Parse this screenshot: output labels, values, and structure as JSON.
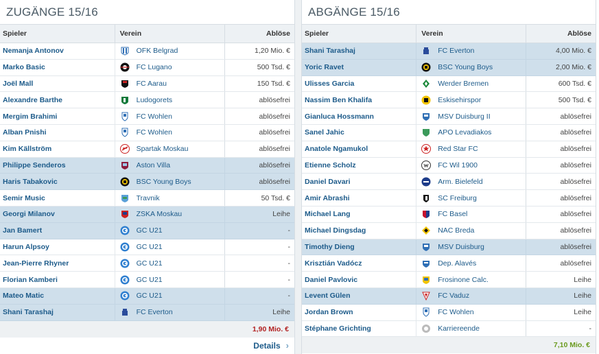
{
  "colors": {
    "link": "#1d5b8a",
    "highlight_row": "#cfdfeb",
    "header_bg": "#edf1f4",
    "total_red": "#b22222",
    "total_green": "#6a9a1f"
  },
  "zugaenge": {
    "title": "ZUGÄNGE 15/16",
    "headers": {
      "spieler": "Spieler",
      "verein": "Verein",
      "abloese": "Ablöse"
    },
    "rows": [
      {
        "player": "Nemanja Antonov",
        "club": "OFK Belgrad",
        "fee": "1,20 Mio. €",
        "crest": "ofk-belgrad-crest"
      },
      {
        "player": "Marko Basic",
        "club": "FC Lugano",
        "fee": "500 Tsd. €",
        "crest": "fc-lugano-crest"
      },
      {
        "player": "Joël Mall",
        "club": "FC Aarau",
        "fee": "150 Tsd. €",
        "crest": "fc-aarau-crest"
      },
      {
        "player": "Alexandre Barthe",
        "club": "Ludogorets",
        "fee": "ablösefrei",
        "crest": "ludogorets-crest"
      },
      {
        "player": "Mergim Brahimi",
        "club": "FC Wohlen",
        "fee": "ablösefrei",
        "crest": "fc-wohlen-crest"
      },
      {
        "player": "Alban Pnishi",
        "club": "FC Wohlen",
        "fee": "ablösefrei",
        "crest": "fc-wohlen-crest"
      },
      {
        "player": "Kim Källström",
        "club": "Spartak Moskau",
        "fee": "ablösefrei",
        "crest": "spartak-moskau-crest"
      },
      {
        "player": "Philippe Senderos",
        "club": "Aston Villa",
        "fee": "ablösefrei",
        "crest": "aston-villa-crest"
      },
      {
        "player": "Haris Tabakovic",
        "club": "BSC Young Boys",
        "fee": "ablösefrei",
        "crest": "young-boys-crest"
      },
      {
        "player": "Semir Music",
        "club": "Travnik",
        "fee": "50 Tsd. €",
        "crest": "travnik-crest"
      },
      {
        "player": "Georgi Milanov",
        "club": "ZSKA Moskau",
        "fee": "Leihe",
        "crest": "zska-moskau-crest"
      },
      {
        "player": "Jan Bamert",
        "club": "GC U21",
        "fee": "-",
        "crest": "gc-crest"
      },
      {
        "player": "Harun Alpsoy",
        "club": "GC U21",
        "fee": "-",
        "crest": "gc-crest"
      },
      {
        "player": "Jean-Pierre Rhyner",
        "club": "GC U21",
        "fee": "-",
        "crest": "gc-crest"
      },
      {
        "player": "Florian Kamberi",
        "club": "GC U21",
        "fee": "-",
        "crest": "gc-crest"
      },
      {
        "player": "Mateo Matic",
        "club": "GC U21",
        "fee": "-",
        "crest": "gc-crest"
      },
      {
        "player": "Shani Tarashaj",
        "club": "FC Everton",
        "fee": "Leihe",
        "crest": "everton-crest"
      }
    ],
    "total": "1,90 Mio. €",
    "details_label": "Details",
    "details_chevron": "›"
  },
  "abgaenge": {
    "title": "ABGÄNGE 15/16",
    "headers": {
      "spieler": "Spieler",
      "verein": "Verein",
      "abloese": "Ablöse"
    },
    "rows": [
      {
        "player": "Shani Tarashaj",
        "club": "FC Everton",
        "fee": "4,00 Mio. €",
        "crest": "everton-crest"
      },
      {
        "player": "Yoric Ravet",
        "club": "BSC Young Boys",
        "fee": "2,00 Mio. €",
        "crest": "young-boys-crest"
      },
      {
        "player": "Ulisses Garcia",
        "club": "Werder Bremen",
        "fee": "600 Tsd. €",
        "crest": "werder-bremen-crest"
      },
      {
        "player": "Nassim Ben Khalifa",
        "club": "Eskisehirspor",
        "fee": "500 Tsd. €",
        "crest": "eskisehirspor-crest"
      },
      {
        "player": "Gianluca Hossmann",
        "club": "MSV Duisburg II",
        "fee": "ablösefrei",
        "crest": "msv-duisburg-crest"
      },
      {
        "player": "Sanel Jahic",
        "club": "APO Levadiakos",
        "fee": "ablösefrei",
        "crest": "levadiakos-crest"
      },
      {
        "player": "Anatole Ngamukol",
        "club": "Red Star FC",
        "fee": "ablösefrei",
        "crest": "red-star-crest"
      },
      {
        "player": "Etienne Scholz",
        "club": "FC Wil 1900",
        "fee": "ablösefrei",
        "crest": "fc-wil-crest"
      },
      {
        "player": "Daniel Davari",
        "club": "Arm. Bielefeld",
        "fee": "ablösefrei",
        "crest": "bielefeld-crest"
      },
      {
        "player": "Amir Abrashi",
        "club": "SC Freiburg",
        "fee": "ablösefrei",
        "crest": "sc-freiburg-crest"
      },
      {
        "player": "Michael Lang",
        "club": "FC Basel",
        "fee": "ablösefrei",
        "crest": "fc-basel-crest"
      },
      {
        "player": "Michael Dingsdag",
        "club": "NAC Breda",
        "fee": "ablösefrei",
        "crest": "nac-breda-crest"
      },
      {
        "player": "Timothy Dieng",
        "club": "MSV Duisburg",
        "fee": "ablösefrei",
        "crest": "msv-duisburg-crest"
      },
      {
        "player": "Krisztián Vadócz",
        "club": "Dep. Alavés",
        "fee": "ablösefrei",
        "crest": "alaves-crest"
      },
      {
        "player": "Daniel Pavlovic",
        "club": "Frosinone Calc.",
        "fee": "Leihe",
        "crest": "frosinone-crest"
      },
      {
        "player": "Levent Gülen",
        "club": "FC Vaduz",
        "fee": "Leihe",
        "crest": "fc-vaduz-crest"
      },
      {
        "player": "Jordan Brown",
        "club": "FC Wohlen",
        "fee": "Leihe",
        "crest": "fc-wohlen-crest"
      },
      {
        "player": "Stéphane Grichting",
        "club": "Karriereende",
        "fee": "-",
        "crest": "retired-icon"
      }
    ],
    "total": "7,10 Mio. €"
  }
}
